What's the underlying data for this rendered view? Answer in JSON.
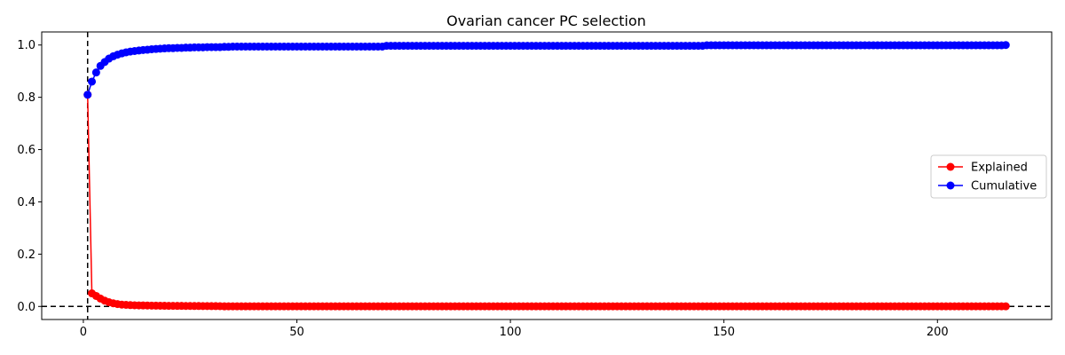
{
  "chart_data": {
    "type": "line",
    "title": "Ovarian cancer PC selection",
    "xlabel": "",
    "ylabel": "",
    "n_points": 216,
    "xlim": [
      -9.75,
      226.75
    ],
    "ylim": [
      -0.05,
      1.05
    ],
    "xticks": [
      0,
      50,
      100,
      150,
      200
    ],
    "yticks": [
      0.0,
      0.2,
      0.4,
      0.6,
      0.8,
      1.0
    ],
    "ytick_labels": [
      "0.0",
      "0.2",
      "0.4",
      "0.6",
      "0.8",
      "1.0"
    ],
    "reference_lines": {
      "vertical_x": 1,
      "horizontal_y": 0.0,
      "color": "#000000",
      "style": "dashed"
    },
    "legend": {
      "placement": "center-right"
    },
    "grid": false,
    "series": [
      {
        "name": "Explained",
        "color": "#ff0000",
        "marker": "circle",
        "head": [
          0.81,
          0.05,
          0.04,
          0.03,
          0.022,
          0.016,
          0.012,
          0.009,
          0.007,
          0.006,
          0.005,
          0.0045,
          0.004,
          0.0038,
          0.0035,
          0.0032,
          0.003,
          0.0028,
          0.0026,
          0.0024,
          0.0022,
          0.0021,
          0.002,
          0.0019,
          0.0018,
          0.0017,
          0.0016,
          0.0015,
          0.0014,
          0.0013,
          0.0012,
          0.0011
        ],
        "tail_value": 0.0003
      },
      {
        "name": "Cumulative",
        "color": "#0000ff",
        "marker": "circle",
        "head": [
          0.81,
          0.86,
          0.895,
          0.92,
          0.935,
          0.948,
          0.957,
          0.963,
          0.968,
          0.972,
          0.975,
          0.977,
          0.979,
          0.981,
          0.982,
          0.984,
          0.985,
          0.986,
          0.987,
          0.988,
          0.988,
          0.989,
          0.989,
          0.99,
          0.99,
          0.991,
          0.991,
          0.991,
          0.992,
          0.992,
          0.992,
          0.992,
          0.993,
          0.993
        ],
        "plateaus": [
          [
            35,
            0.994
          ],
          [
            71,
            0.997
          ],
          [
            146,
            0.999
          ]
        ],
        "end_value": 1.0
      }
    ]
  }
}
